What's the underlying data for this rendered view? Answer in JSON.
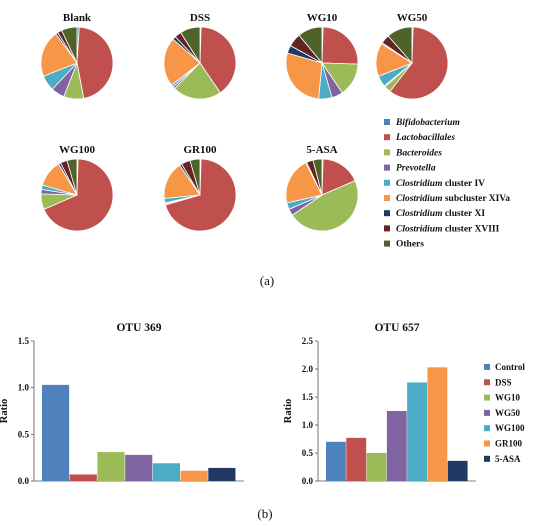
{
  "panel_a_label": "(a)",
  "panel_b_label": "(b)",
  "colors": [
    "#4f81bd",
    "#c0504d",
    "#9bbb59",
    "#8064a2",
    "#4bacc6",
    "#f79646",
    "#1f3864",
    "#632523",
    "#4f6228"
  ],
  "chart_data": [
    {
      "type": "pie",
      "legend": {
        "placement": "right",
        "entries": [
          {
            "genus": "Bifidobacterium",
            "suffix": ""
          },
          {
            "genus": "Lactobacillales",
            "suffix": ""
          },
          {
            "genus": "Bacteroides",
            "suffix": ""
          },
          {
            "genus": "Prevotella",
            "suffix": ""
          },
          {
            "genus": "Clostridium",
            "suffix": " cluster IV"
          },
          {
            "genus": "Clostridium",
            "suffix": " subcluster XIVa"
          },
          {
            "genus": "Clostridium",
            "suffix": " cluster XI"
          },
          {
            "genus": "Clostridium",
            "suffix": " cluster XVIII"
          },
          {
            "genus": "",
            "suffix": "Others"
          }
        ]
      },
      "pies": [
        {
          "title": "Blank",
          "values": [
            1,
            46,
            9,
            6,
            7,
            21,
            1,
            2,
            7
          ]
        },
        {
          "title": "DSS",
          "values": [
            0.5,
            40,
            22,
            1,
            1,
            22,
            1.5,
            3,
            9
          ]
        },
        {
          "title": "WG10",
          "values": [
            0.5,
            25,
            15,
            5,
            6,
            28,
            3.5,
            6,
            11
          ]
        },
        {
          "title": "WG50",
          "values": [
            0.5,
            60,
            3,
            0.5,
            5,
            15,
            0.5,
            4,
            11.5
          ]
        },
        {
          "title": "WG100",
          "values": [
            0.5,
            68,
            7,
            2,
            2,
            12,
            1,
            3,
            4.5
          ]
        },
        {
          "title": "GR100",
          "values": [
            0.5,
            70,
            0.5,
            0.5,
            2,
            17,
            1,
            4,
            4.5
          ]
        },
        {
          "title": "5-ASA",
          "values": [
            0.5,
            18,
            47,
            3,
            3,
            21,
            0.5,
            3,
            4
          ]
        }
      ]
    },
    {
      "type": "bar",
      "title": "OTU 369",
      "ylabel": "Ratio",
      "ylim": [
        0,
        1.5
      ],
      "yticks": [
        "0.0",
        "0.5",
        "1.0",
        "1.5"
      ],
      "categories": [
        "Control",
        "DSS",
        "WG10",
        "WG50",
        "WG100",
        "GR100",
        "5-ASA"
      ],
      "values": [
        1.03,
        0.07,
        0.31,
        0.28,
        0.19,
        0.11,
        0.14
      ]
    },
    {
      "type": "bar",
      "title": "OTU 657",
      "ylabel": "Ratio",
      "ylim": [
        0,
        2.5
      ],
      "yticks": [
        "0.0",
        "0.5",
        "1.0",
        "1.5",
        "2.0",
        "2.5"
      ],
      "categories": [
        "Control",
        "DSS",
        "WG10",
        "WG50",
        "WG100",
        "GR100",
        "5-ASA"
      ],
      "values": [
        0.7,
        0.77,
        0.5,
        1.25,
        1.76,
        2.03,
        0.36
      ],
      "legend": {
        "placement": "right",
        "entries": [
          "Control",
          "DSS",
          "WG10",
          "WG50",
          "WG100",
          "GR100",
          "5-ASA"
        ]
      }
    }
  ]
}
